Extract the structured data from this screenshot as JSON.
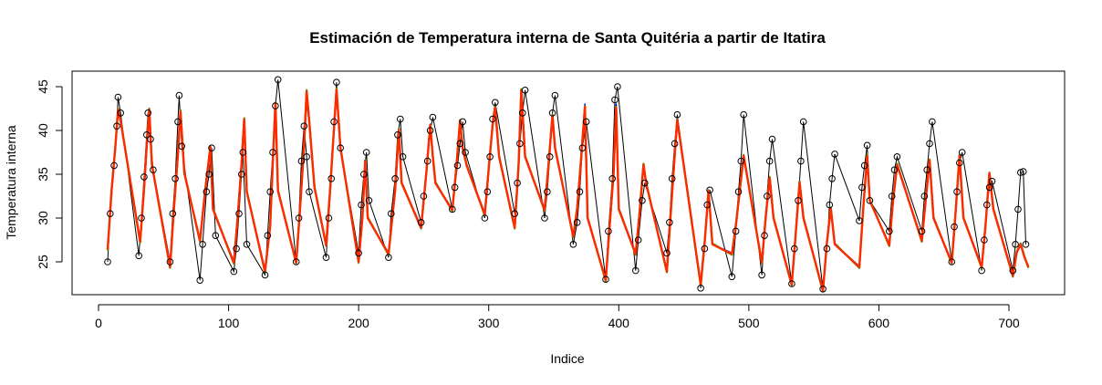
{
  "chart_data": {
    "type": "line",
    "title": "Estimación de Temperatura interna de Santa Quitéria a partir de Itatira",
    "xlabel": "Indice",
    "ylabel": "Temperatura interna",
    "xlim": [
      0,
      740
    ],
    "ylim": [
      21,
      47
    ],
    "xticks": [
      0,
      100,
      200,
      300,
      400,
      500,
      600,
      700
    ],
    "yticks": [
      25,
      30,
      35,
      40,
      45
    ],
    "grid": false,
    "legend": "none",
    "colors": {
      "observed": "#000000",
      "series_blue": "#0000ff",
      "series_green": "#22b000",
      "series_red": "#ff2a00"
    },
    "observed": {
      "marker": "open-circle",
      "x": [
        7,
        9,
        12,
        14,
        15,
        17,
        31,
        33,
        35,
        37,
        38,
        40,
        42,
        55,
        57,
        59,
        61,
        62,
        64,
        78,
        80,
        83,
        85,
        87,
        90,
        104,
        106,
        108,
        110,
        111,
        114,
        128,
        130,
        132,
        134,
        136,
        138,
        152,
        154,
        156,
        158,
        160,
        162,
        175,
        177,
        179,
        181,
        183,
        186,
        200,
        202,
        204,
        206,
        208,
        223,
        225,
        228,
        230,
        232,
        234,
        248,
        250,
        253,
        255,
        257,
        272,
        274,
        276,
        278,
        280,
        282,
        297,
        299,
        301,
        303,
        305,
        320,
        322,
        324,
        326,
        328,
        343,
        345,
        347,
        349,
        351,
        365,
        368,
        370,
        372,
        375,
        390,
        392,
        395,
        397,
        399,
        413,
        415,
        418,
        420,
        437,
        439,
        441,
        443,
        445,
        463,
        466,
        468,
        470,
        487,
        490,
        492,
        494,
        496,
        510,
        512,
        514,
        516,
        518,
        533,
        535,
        538,
        540,
        542,
        557,
        560,
        562,
        564,
        566,
        585,
        587,
        589,
        591,
        593,
        608,
        610,
        612,
        614,
        633,
        635,
        637,
        639,
        641,
        656,
        658,
        660,
        662,
        664,
        679,
        681,
        683,
        685,
        687,
        703,
        705,
        707,
        709,
        711,
        713
      ],
      "y": [
        25,
        30.5,
        36,
        40.5,
        43.8,
        42,
        25.7,
        30,
        34.7,
        39.5,
        42,
        39,
        35.5,
        25,
        30.5,
        34.5,
        41,
        44,
        38.2,
        22.9,
        27,
        33,
        35,
        38,
        28,
        23.9,
        26.5,
        30.5,
        35,
        37.5,
        27,
        23.5,
        28,
        33,
        37.5,
        42.8,
        45.8,
        25,
        30,
        36.5,
        40.5,
        37,
        33,
        25.5,
        30,
        34.5,
        41,
        45.5,
        38,
        26,
        31.5,
        35,
        37.5,
        32,
        25.5,
        30.5,
        34.5,
        39.5,
        41.3,
        37,
        29.5,
        32.5,
        36.5,
        40,
        41.5,
        31,
        33.5,
        36,
        38.5,
        41,
        37.5,
        30,
        33,
        37,
        41.3,
        43.2,
        30.5,
        34,
        38.5,
        42,
        44.6,
        30,
        33,
        37,
        42,
        44,
        27,
        29.5,
        33,
        38,
        41,
        23,
        28.5,
        34.5,
        43.5,
        45,
        24,
        27.5,
        32,
        34,
        26,
        29.5,
        34.5,
        38.5,
        41.8,
        22,
        26.5,
        31.5,
        33.2,
        23.3,
        28.5,
        33,
        36.5,
        41.8,
        23.5,
        28,
        32.5,
        36.5,
        39,
        22.5,
        26.5,
        32,
        36.5,
        41,
        21.9,
        26.5,
        31.5,
        34.5,
        37.3,
        29.7,
        33.5,
        36,
        38.3,
        32,
        28.5,
        32.5,
        35.5,
        37,
        28.5,
        32.5,
        35.5,
        38.5,
        41,
        25,
        29,
        33,
        36.3,
        37.5,
        24,
        27.5,
        31.5,
        33.5,
        34.2,
        24,
        27,
        31,
        35.2,
        35.3,
        27
      ]
    },
    "series": [
      {
        "color": "#0000ff",
        "x": [
          7,
          10,
          13,
          15,
          17,
          32,
          35,
          37,
          39,
          41,
          55,
          58,
          61,
          63,
          66,
          78,
          82,
          86,
          88,
          104,
          107,
          110,
          112,
          114,
          128,
          132,
          134,
          136,
          138,
          152,
          155,
          158,
          160,
          162,
          166,
          175,
          178,
          181,
          183,
          186,
          200,
          203,
          205,
          207,
          223,
          228,
          231,
          233,
          248,
          252,
          255,
          257,
          259,
          272,
          275,
          278,
          280,
          283,
          297,
          300,
          303,
          305,
          308,
          320,
          323,
          325,
          328,
          343,
          346,
          349,
          351,
          365,
          368,
          371,
          374,
          376,
          390,
          393,
          396,
          398,
          400,
          413,
          416,
          419,
          421,
          437,
          440,
          443,
          445,
          463,
          466,
          469,
          472,
          487,
          490,
          493,
          496,
          510,
          513,
          516,
          519,
          533,
          536,
          539,
          542,
          557,
          560,
          563,
          566,
          585,
          588,
          591,
          593,
          608,
          611,
          614,
          633,
          636,
          639,
          642,
          656,
          659,
          662,
          665,
          679,
          682,
          685,
          688,
          703,
          706,
          709,
          712,
          715
        ],
        "y": [
          26.5,
          33,
          38,
          42.3,
          41,
          27.5,
          33,
          38,
          42.3,
          36,
          24.5,
          31,
          37,
          42,
          35,
          27.5,
          33,
          38,
          31,
          25,
          30,
          36,
          41,
          33,
          24,
          29,
          36,
          43,
          33,
          25,
          31,
          38,
          43.5,
          41,
          33.5,
          27,
          33,
          40,
          44.5,
          38,
          25,
          30,
          36.5,
          30,
          26,
          33,
          40,
          34,
          29,
          35,
          40.5,
          37,
          34,
          31,
          35.5,
          41,
          38,
          36,
          30.5,
          35.5,
          40.5,
          42.5,
          37,
          29,
          36,
          44.5,
          37,
          31,
          36,
          41.5,
          38,
          28,
          31,
          36.5,
          43,
          30,
          23,
          29,
          35,
          43,
          31,
          26,
          30.5,
          36,
          34,
          24,
          30.5,
          37,
          41.5,
          22.5,
          27,
          33,
          27,
          26,
          29,
          33,
          37,
          25,
          30,
          34.5,
          30,
          22.5,
          28,
          34,
          30,
          21.8,
          27,
          31,
          27,
          24.5,
          31,
          37,
          32,
          27,
          32,
          36,
          27.5,
          32,
          36.5,
          30,
          25,
          30.5,
          37,
          30,
          24.5,
          29,
          35,
          31,
          23.5,
          26,
          27,
          25.5,
          24.5
        ]
      },
      {
        "color": "#22b000",
        "x": [
          7,
          10,
          13,
          15,
          17,
          32,
          35,
          37,
          39,
          41,
          55,
          58,
          61,
          63,
          66,
          78,
          82,
          86,
          88,
          104,
          107,
          110,
          112,
          114,
          128,
          132,
          134,
          136,
          138,
          152,
          155,
          158,
          160,
          162,
          166,
          175,
          178,
          181,
          183,
          186,
          200,
          203,
          205,
          207,
          223,
          228,
          231,
          233,
          248,
          252,
          255,
          257,
          259,
          272,
          275,
          278,
          280,
          283,
          297,
          300,
          303,
          305,
          308,
          320,
          323,
          325,
          328,
          343,
          346,
          349,
          351,
          365,
          368,
          371,
          374,
          376,
          390,
          393,
          396,
          398,
          400,
          413,
          416,
          419,
          421,
          437,
          440,
          443,
          445,
          463,
          466,
          469,
          472,
          487,
          490,
          493,
          496,
          510,
          513,
          516,
          519,
          533,
          536,
          539,
          542,
          557,
          560,
          563,
          566,
          585,
          588,
          591,
          593,
          608,
          611,
          614,
          633,
          636,
          639,
          642,
          656,
          659,
          662,
          665,
          679,
          682,
          685,
          688,
          703,
          706,
          709,
          712,
          715
        ],
        "y": [
          26.3,
          33.2,
          38.3,
          42.5,
          41.2,
          27.2,
          33.4,
          38.3,
          42.5,
          36.2,
          24.3,
          31.2,
          37.4,
          42.3,
          35.2,
          27.3,
          33.2,
          38.2,
          31.1,
          24.8,
          30.2,
          36.3,
          41.4,
          33.1,
          23.8,
          29.2,
          36.4,
          43.2,
          33.2,
          24.8,
          31.3,
          38.3,
          44.6,
          41.1,
          33.6,
          26.8,
          33.2,
          40.3,
          44.8,
          38.1,
          24.9,
          30.3,
          36.6,
          30.1,
          25.8,
          33.2,
          40.2,
          34.1,
          28.8,
          35.2,
          40.7,
          37.2,
          34.1,
          30.8,
          35.7,
          41.2,
          38.1,
          36.1,
          30.3,
          35.7,
          40.7,
          42.7,
          37.1,
          28.8,
          36.2,
          44.7,
          37.1,
          30.8,
          36.2,
          41.8,
          38.1,
          27.8,
          31.2,
          36.7,
          42.8,
          30.1,
          22.8,
          29.2,
          35.2,
          42.7,
          31.1,
          25.8,
          30.7,
          36.2,
          34.1,
          23.8,
          30.7,
          37.2,
          41.3,
          22.3,
          27.2,
          33.2,
          27.1,
          25.8,
          29.2,
          33.2,
          37.2,
          24.8,
          30.2,
          34.7,
          30.1,
          22.3,
          28.2,
          34.2,
          30.1,
          21.6,
          27.2,
          31.2,
          27.1,
          24.3,
          31.2,
          37.2,
          32.1,
          26.8,
          32.2,
          36.2,
          27.3,
          32.2,
          36.7,
          30.1,
          24.8,
          30.7,
          37.2,
          30.1,
          24.3,
          29.2,
          35.2,
          31.1,
          23.3,
          26.2,
          27.1,
          25.6,
          24.3
        ]
      },
      {
        "color": "#ff2a00",
        "x": [
          7,
          10,
          13,
          15,
          17,
          32,
          35,
          37,
          39,
          41,
          55,
          58,
          61,
          63,
          66,
          78,
          82,
          86,
          88,
          104,
          107,
          110,
          112,
          114,
          128,
          132,
          134,
          136,
          138,
          152,
          155,
          158,
          160,
          162,
          166,
          175,
          178,
          181,
          183,
          186,
          200,
          203,
          205,
          207,
          223,
          228,
          231,
          233,
          248,
          252,
          255,
          257,
          259,
          272,
          275,
          278,
          280,
          283,
          297,
          300,
          303,
          305,
          308,
          320,
          323,
          325,
          328,
          343,
          346,
          349,
          351,
          365,
          368,
          371,
          374,
          376,
          390,
          393,
          396,
          398,
          400,
          413,
          416,
          419,
          421,
          437,
          440,
          443,
          445,
          463,
          466,
          469,
          472,
          487,
          490,
          493,
          496,
          510,
          513,
          516,
          519,
          533,
          536,
          539,
          542,
          557,
          560,
          563,
          566,
          585,
          588,
          591,
          593,
          608,
          611,
          614,
          633,
          636,
          639,
          642,
          656,
          659,
          662,
          665,
          679,
          682,
          685,
          688,
          703,
          706,
          709,
          712,
          715
        ],
        "y": [
          26.4,
          33.1,
          38.2,
          42.4,
          41.1,
          27.3,
          33.3,
          38.2,
          42.4,
          36.1,
          24.4,
          31.1,
          37.2,
          42.2,
          35.1,
          27.4,
          33.1,
          38.1,
          31,
          24.9,
          30.1,
          36.2,
          41.3,
          33,
          23.9,
          29.1,
          36.2,
          43.1,
          33.1,
          24.9,
          31.2,
          38.2,
          44.5,
          41,
          33.5,
          26.9,
          33.1,
          40.2,
          44.7,
          38,
          25,
          30.2,
          36.5,
          30,
          25.9,
          33.1,
          40.1,
          34,
          28.9,
          35.1,
          40.6,
          37.1,
          34,
          30.9,
          35.6,
          41.1,
          38,
          36,
          30.4,
          35.6,
          40.6,
          42.6,
          37,
          28.9,
          36.1,
          44.6,
          37,
          30.9,
          36.1,
          41.7,
          38,
          27.9,
          31.1,
          36.6,
          42.7,
          30,
          22.9,
          29.1,
          35.1,
          42.6,
          31,
          25.9,
          30.6,
          36.1,
          34,
          23.9,
          30.6,
          37.1,
          41.2,
          22.4,
          27.1,
          33.1,
          27,
          25.9,
          29.1,
          33.1,
          37.1,
          24.9,
          30.1,
          34.6,
          30,
          22.4,
          28.1,
          34.1,
          30,
          21.7,
          27.1,
          31.1,
          27,
          24.4,
          31.1,
          37.1,
          32,
          26.9,
          32.1,
          36.1,
          27.4,
          32.1,
          36.6,
          30,
          24.9,
          30.6,
          37.1,
          30,
          24.4,
          29.1,
          35.1,
          31,
          23.4,
          26.1,
          27,
          25.5,
          24.4
        ]
      }
    ]
  }
}
